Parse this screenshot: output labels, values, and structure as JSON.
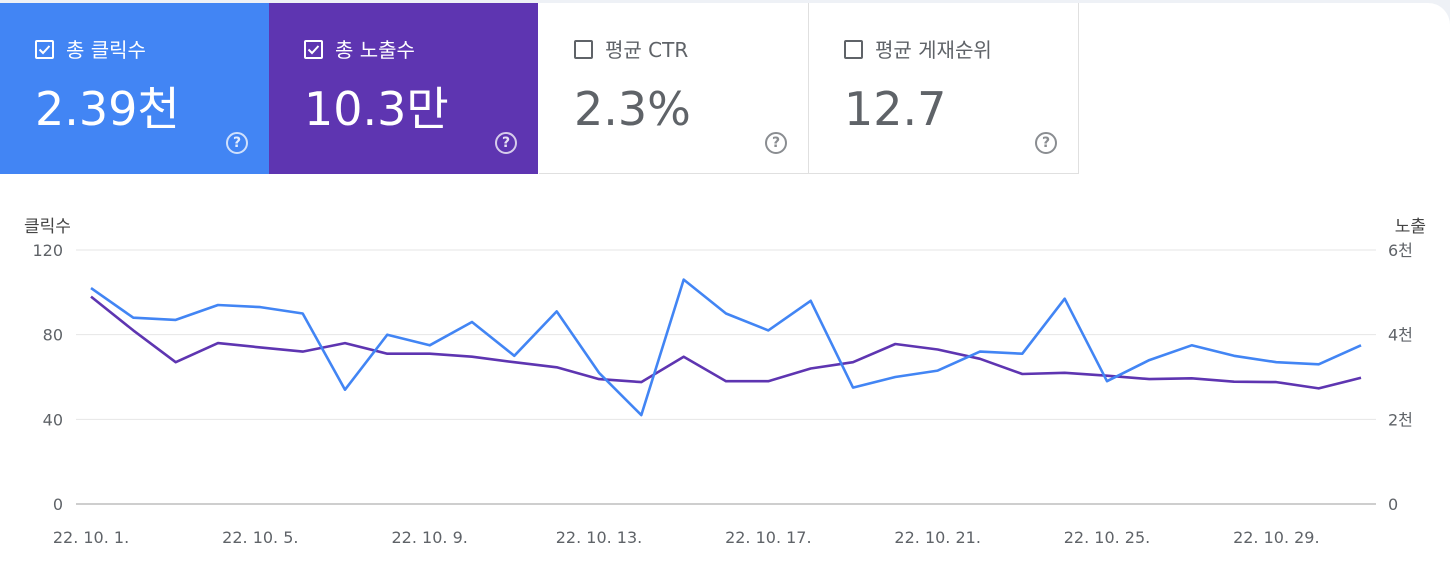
{
  "cards": {
    "clicks": {
      "label": "총 클릭수",
      "value": "2.39천",
      "checked": true,
      "help": "?"
    },
    "impressions": {
      "label": "총 노출수",
      "value": "10.3만",
      "checked": true,
      "help": "?"
    },
    "ctr": {
      "label": "평균 CTR",
      "value": "2.3%",
      "checked": false,
      "help": "?"
    },
    "position": {
      "label": "평균 게재순위",
      "value": "12.7",
      "checked": false,
      "help": "?"
    }
  },
  "colors": {
    "clicks": "#4285f4",
    "impressions": "#5e35b1",
    "grid": "#e6e6e6",
    "axis": "#9e9e9e",
    "text": "#5f6368"
  },
  "chart_data": {
    "type": "line",
    "left_axis_title": "클릭수",
    "right_axis_title": "노출",
    "left_ylim": [
      0,
      120
    ],
    "right_ylim": [
      0,
      6000
    ],
    "left_ticks": [
      {
        "value": 0,
        "label": "0"
      },
      {
        "value": 40,
        "label": "40"
      },
      {
        "value": 80,
        "label": "80"
      },
      {
        "value": 120,
        "label": "120"
      }
    ],
    "right_ticks": [
      {
        "value": 0,
        "label": "0"
      },
      {
        "value": 2000,
        "label": "2천"
      },
      {
        "value": 4000,
        "label": "4천"
      },
      {
        "value": 6000,
        "label": "6천"
      }
    ],
    "x": [
      "22. 10. 1.",
      "22. 10. 2.",
      "22. 10. 3.",
      "22. 10. 4.",
      "22. 10. 5.",
      "22. 10. 6.",
      "22. 10. 7.",
      "22. 10. 8.",
      "22. 10. 9.",
      "22. 10. 10.",
      "22. 10. 11.",
      "22. 10. 12.",
      "22. 10. 13.",
      "22. 10. 14.",
      "22. 10. 15.",
      "22. 10. 16.",
      "22. 10. 17.",
      "22. 10. 18.",
      "22. 10. 19.",
      "22. 10. 20.",
      "22. 10. 21.",
      "22. 10. 22.",
      "22. 10. 23.",
      "22. 10. 24.",
      "22. 10. 25.",
      "22. 10. 26.",
      "22. 10. 27.",
      "22. 10. 28.",
      "22. 10. 29.",
      "22. 10. 30.",
      "22. 10. 31."
    ],
    "x_tick_labels": [
      {
        "index": 0,
        "label": "22. 10. 1."
      },
      {
        "index": 4,
        "label": "22. 10. 5."
      },
      {
        "index": 8,
        "label": "22. 10. 9."
      },
      {
        "index": 12,
        "label": "22. 10. 13."
      },
      {
        "index": 16,
        "label": "22. 10. 17."
      },
      {
        "index": 20,
        "label": "22. 10. 21."
      },
      {
        "index": 24,
        "label": "22. 10. 25."
      },
      {
        "index": 28,
        "label": "22. 10. 29."
      }
    ],
    "series": [
      {
        "name": "총 클릭수",
        "axis": "left",
        "color": "#4285f4",
        "values": [
          102,
          88,
          87,
          94,
          93,
          90,
          54,
          80,
          75,
          86,
          70,
          91,
          62,
          42,
          106,
          90,
          82,
          96,
          55,
          60,
          63,
          72,
          71,
          97,
          58,
          68,
          75,
          70,
          67,
          66,
          75
        ]
      },
      {
        "name": "총 노출수",
        "axis": "right",
        "color": "#5e35b1",
        "values": [
          4900,
          4100,
          3350,
          3800,
          3700,
          3600,
          3800,
          3550,
          3550,
          3480,
          3350,
          3230,
          2950,
          2880,
          3480,
          2900,
          2900,
          3200,
          3350,
          3780,
          3650,
          3430,
          3070,
          3100,
          3030,
          2950,
          2970,
          2890,
          2880,
          2730,
          2980
        ]
      }
    ]
  }
}
